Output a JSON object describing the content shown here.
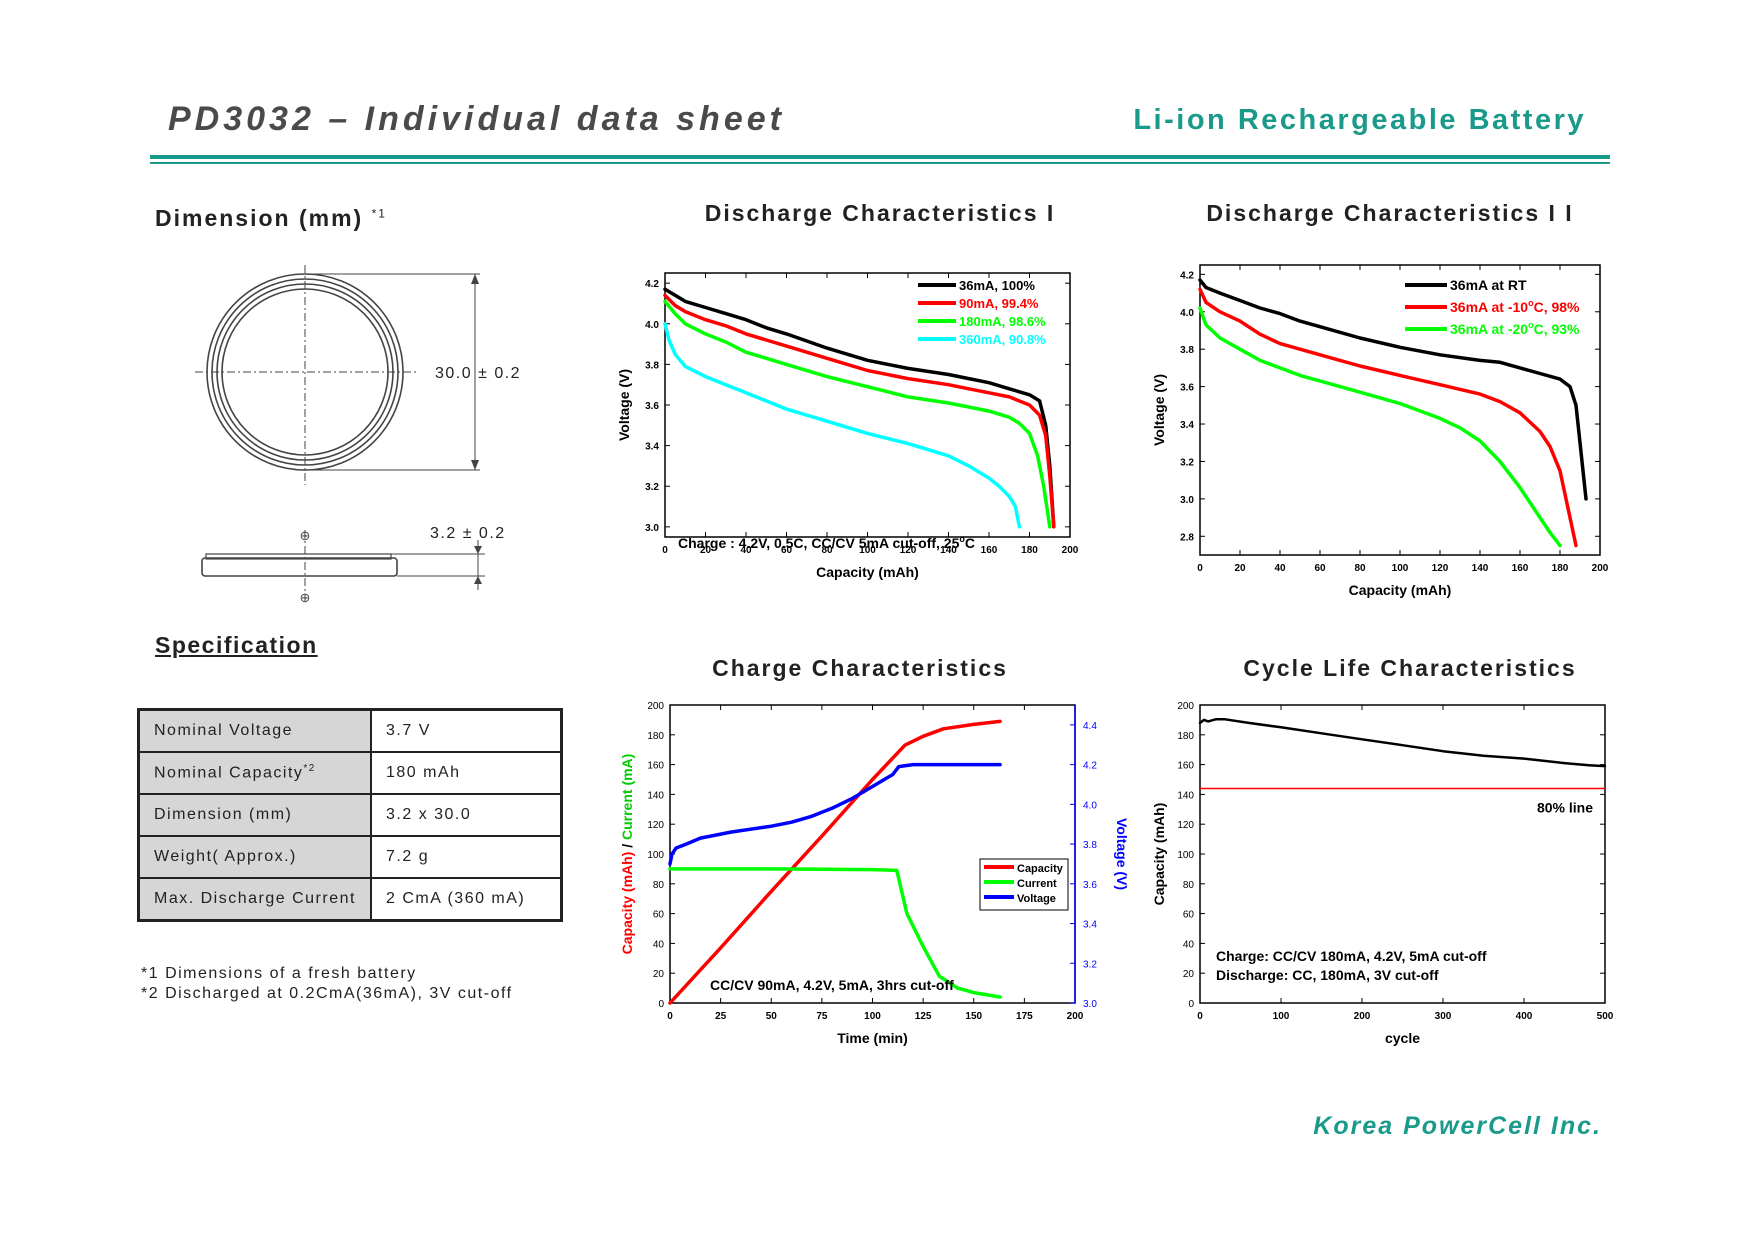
{
  "header": {
    "title": "PD3032 – Individual data sheet",
    "subtitle": "Li-ion Rechargeable Battery"
  },
  "dimension": {
    "title": "Dimension (mm)",
    "title_note": "*1",
    "diameter": "30.0 ± 0.2",
    "thickness": "3.2 ± 0.2",
    "plus_symbol": "⊕",
    "minus_symbol": "⊖"
  },
  "specification": {
    "title": "Specification",
    "rows": [
      {
        "label": "Nominal Voltage",
        "note": "",
        "value": "3.7 V"
      },
      {
        "label": "Nominal  Capacity",
        "note": "*2",
        "value": "180 mAh"
      },
      {
        "label": "Dimension (mm)",
        "note": "",
        "value": "3.2 x 30.0"
      },
      {
        "label": "Weight( Approx.)",
        "note": "",
        "value": "7.2 g"
      },
      {
        "label": "Max. Discharge Current",
        "note": "",
        "value": "2 CmA (360 mA)"
      }
    ],
    "footnotes": [
      "*1   Dimensions of a fresh battery",
      "*2   Discharged at 0.2CmA(36mA), 3V cut-off"
    ]
  },
  "company": "Korea PowerCell Inc.",
  "chart_data": [
    {
      "type": "line",
      "title": "Discharge Characteristics I",
      "xlabel": "Capacity (mAh)",
      "ylabel": "Voltage (V)",
      "xlim": [
        0,
        200
      ],
      "ylim": [
        2.95,
        4.25
      ],
      "xticks": [
        "0",
        "20",
        "40",
        "60",
        "80",
        "100",
        "120",
        "140",
        "160",
        "180",
        "200"
      ],
      "yticks": [
        "3.0",
        "3.2",
        "3.4",
        "3.6",
        "3.8",
        "4.0",
        "4.2"
      ],
      "annotation": "Charge : 4.2V, 0.5C, CC/CV 5mA cut-off, 25°C",
      "legend_position": "top-right",
      "series": [
        {
          "name": "36mA, 100%",
          "color": "#000000",
          "x": [
            0,
            5,
            10,
            20,
            30,
            40,
            50,
            60,
            80,
            100,
            120,
            140,
            150,
            160,
            170,
            180,
            185,
            188,
            190,
            192
          ],
          "y": [
            4.17,
            4.14,
            4.11,
            4.08,
            4.05,
            4.02,
            3.98,
            3.95,
            3.88,
            3.82,
            3.78,
            3.75,
            3.73,
            3.71,
            3.68,
            3.65,
            3.62,
            3.5,
            3.3,
            3.0
          ]
        },
        {
          "name": "90mA, 99.4%",
          "color": "#ff0000",
          "x": [
            0,
            5,
            10,
            20,
            30,
            40,
            50,
            60,
            80,
            100,
            120,
            140,
            150,
            160,
            170,
            180,
            185,
            188,
            190,
            192
          ],
          "y": [
            4.14,
            4.09,
            4.06,
            4.02,
            3.99,
            3.95,
            3.92,
            3.89,
            3.83,
            3.77,
            3.73,
            3.7,
            3.68,
            3.66,
            3.64,
            3.6,
            3.55,
            3.45,
            3.25,
            3.0
          ]
        },
        {
          "name": "180mA, 98.6%",
          "color": "#00ff00",
          "x": [
            0,
            5,
            10,
            20,
            30,
            40,
            50,
            60,
            80,
            100,
            120,
            140,
            150,
            160,
            170,
            175,
            180,
            184,
            187,
            190
          ],
          "y": [
            4.11,
            4.05,
            4.0,
            3.95,
            3.91,
            3.86,
            3.83,
            3.8,
            3.74,
            3.69,
            3.64,
            3.61,
            3.59,
            3.57,
            3.54,
            3.51,
            3.46,
            3.35,
            3.2,
            3.0
          ]
        },
        {
          "name": "360mA, 90.8%",
          "color": "#00ffff",
          "x": [
            0,
            2,
            5,
            10,
            20,
            30,
            40,
            50,
            60,
            80,
            100,
            120,
            130,
            140,
            150,
            160,
            165,
            170,
            173,
            175
          ],
          "y": [
            4.0,
            3.92,
            3.85,
            3.79,
            3.74,
            3.7,
            3.66,
            3.62,
            3.58,
            3.52,
            3.46,
            3.41,
            3.38,
            3.35,
            3.3,
            3.24,
            3.2,
            3.15,
            3.1,
            3.0
          ]
        }
      ]
    },
    {
      "type": "line",
      "title": "Discharge Characteristics I I",
      "xlabel": "Capacity (mAh)",
      "ylabel": "Voltage (V)",
      "xlim": [
        0,
        200
      ],
      "ylim": [
        2.7,
        4.25
      ],
      "xticks": [
        "0",
        "20",
        "40",
        "60",
        "80",
        "100",
        "120",
        "140",
        "160",
        "180",
        "200"
      ],
      "yticks": [
        "2.8",
        "3.0",
        "3.2",
        "3.4",
        "3.6",
        "3.8",
        "4.0",
        "4.2"
      ],
      "legend_position": "top-right",
      "series": [
        {
          "name": "36mA at RT",
          "color": "#000000",
          "x": [
            0,
            3,
            10,
            20,
            30,
            40,
            50,
            60,
            80,
            100,
            120,
            140,
            150,
            160,
            170,
            180,
            185,
            188,
            190,
            192,
            193
          ],
          "y": [
            4.17,
            4.13,
            4.1,
            4.06,
            4.02,
            3.99,
            3.95,
            3.92,
            3.86,
            3.81,
            3.77,
            3.74,
            3.73,
            3.7,
            3.67,
            3.64,
            3.6,
            3.5,
            3.3,
            3.1,
            3.0
          ]
        },
        {
          "name": "36mA at -10°C, 98%",
          "color": "#ff0000",
          "x": [
            0,
            3,
            10,
            20,
            30,
            40,
            50,
            60,
            80,
            100,
            120,
            140,
            150,
            160,
            170,
            175,
            180,
            183,
            186,
            188
          ],
          "y": [
            4.12,
            4.05,
            4.0,
            3.95,
            3.88,
            3.83,
            3.8,
            3.77,
            3.71,
            3.66,
            3.61,
            3.56,
            3.52,
            3.46,
            3.36,
            3.28,
            3.15,
            3.0,
            2.85,
            2.75
          ]
        },
        {
          "name": "36mA at -20°C, 93%",
          "color": "#00ff00",
          "x": [
            0,
            3,
            10,
            20,
            30,
            40,
            50,
            60,
            80,
            100,
            120,
            130,
            140,
            150,
            160,
            170,
            175,
            180
          ],
          "y": [
            4.02,
            3.93,
            3.86,
            3.8,
            3.74,
            3.7,
            3.66,
            3.63,
            3.57,
            3.51,
            3.43,
            3.38,
            3.31,
            3.2,
            3.06,
            2.9,
            2.82,
            2.75
          ]
        }
      ]
    },
    {
      "type": "line",
      "title": "Charge Characteristics",
      "xlabel": "Time (min)",
      "ylabel": "Capacity (mAh) / Current (mA)",
      "ylabel_parts": [
        "Capacity (mAh)",
        " / ",
        "Current (mA)"
      ],
      "y2label": "Voltage (V)",
      "xlim": [
        0,
        200
      ],
      "ylim": [
        0,
        200
      ],
      "y2lim": [
        3.0,
        4.5
      ],
      "xticks": [
        "0",
        "25",
        "50",
        "75",
        "100",
        "125",
        "150",
        "175",
        "200"
      ],
      "yticks": [
        "0",
        "20",
        "40",
        "60",
        "80",
        "100",
        "120",
        "140",
        "160",
        "180",
        "200"
      ],
      "y2ticks": [
        "3.0",
        "3.2",
        "3.4",
        "3.6",
        "3.8",
        "4.0",
        "4.2",
        "4.4"
      ],
      "annotation": "CC/CV 90mA, 4.2V, 5mA, 3hrs cut-off",
      "legend_position": "middle-right",
      "series": [
        {
          "name": "Capacity",
          "color": "#ff0000",
          "axis": "left",
          "x": [
            0,
            25,
            50,
            75,
            100,
            116,
            125,
            135,
            150,
            163
          ],
          "y": [
            0,
            37,
            75,
            112,
            150,
            173,
            179,
            184,
            187,
            189
          ]
        },
        {
          "name": "Current",
          "color": "#00ff00",
          "axis": "left",
          "x": [
            0,
            25,
            50,
            75,
            100,
            112,
            117,
            125,
            133,
            142,
            150,
            163
          ],
          "y": [
            90,
            90,
            90,
            89.8,
            89.5,
            89,
            60,
            38,
            18,
            10,
            7,
            4
          ]
        },
        {
          "name": "Voltage",
          "color": "#0000ff",
          "axis": "right",
          "x": [
            0,
            1,
            3,
            8,
            15,
            30,
            50,
            60,
            70,
            80,
            90,
            100,
            105,
            110,
            113,
            120,
            140,
            163
          ],
          "y": [
            3.7,
            3.75,
            3.78,
            3.8,
            3.83,
            3.86,
            3.89,
            3.91,
            3.94,
            3.98,
            4.03,
            4.09,
            4.12,
            4.15,
            4.19,
            4.2,
            4.2,
            4.2
          ]
        }
      ]
    },
    {
      "type": "line",
      "title": "Cycle Life Characteristics",
      "xlabel": "cycle",
      "ylabel": "Capacity (mAh)",
      "xlim": [
        0,
        500
      ],
      "ylim": [
        0,
        200
      ],
      "xticks": [
        "0",
        "100",
        "200",
        "300",
        "400",
        "500"
      ],
      "yticks": [
        "0",
        "20",
        "40",
        "60",
        "80",
        "100",
        "120",
        "140",
        "160",
        "180",
        "200"
      ],
      "annotation_lines": [
        "Charge: CC/CV 180mA, 4.2V, 5mA cut-off",
        "Discharge: CC, 180mA, 3V cut-off"
      ],
      "reference_line": {
        "label": "80% line",
        "y": 144,
        "color": "#ff0000"
      },
      "series": [
        {
          "name": "",
          "color": "#000000",
          "x": [
            0,
            5,
            10,
            20,
            30,
            60,
            100,
            150,
            200,
            250,
            300,
            350,
            400,
            450,
            480,
            500
          ],
          "y": [
            188,
            190,
            189,
            190.5,
            190.5,
            188,
            185,
            181,
            177,
            173,
            169,
            166,
            164,
            161,
            159.5,
            159
          ]
        }
      ]
    }
  ]
}
